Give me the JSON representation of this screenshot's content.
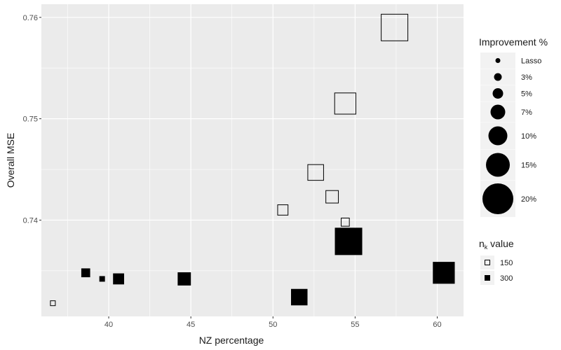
{
  "chart_data": {
    "type": "scatter",
    "xlabel": "NZ percentage",
    "ylabel": "Overall MSE",
    "xlim": [
      35.9,
      61.6
    ],
    "ylim": [
      0.7305,
      0.7613
    ],
    "x_ticks": [
      40,
      45,
      50,
      55,
      60
    ],
    "y_ticks": [
      0.74,
      0.75,
      0.76
    ],
    "grid": true,
    "legend_placement": "right",
    "size_legend": {
      "title": "Improvement %",
      "entries": [
        {
          "label": "Lasso",
          "improvement": 0
        },
        {
          "label": "3%",
          "improvement": 3
        },
        {
          "label": "5%",
          "improvement": 5
        },
        {
          "label": "7%",
          "improvement": 7
        },
        {
          "label": "10%",
          "improvement": 10
        },
        {
          "label": "15%",
          "improvement": 15
        },
        {
          "label": "20%",
          "improvement": 20
        }
      ]
    },
    "shape_legend": {
      "title_main": "n",
      "title_sub": "k",
      "title_rest": " value",
      "entries": [
        {
          "label": "150",
          "fill": "open"
        },
        {
          "label": "300",
          "fill": "filled"
        }
      ]
    },
    "points": [
      {
        "x": 36.6,
        "y": 0.7318,
        "nk": 150,
        "improvement": 0
      },
      {
        "x": 50.6,
        "y": 0.741,
        "nk": 150,
        "improvement": 5
      },
      {
        "x": 52.6,
        "y": 0.7447,
        "nk": 150,
        "improvement": 10
      },
      {
        "x": 53.6,
        "y": 0.7423,
        "nk": 150,
        "improvement": 7
      },
      {
        "x": 54.4,
        "y": 0.7398,
        "nk": 150,
        "improvement": 3
      },
      {
        "x": 54.4,
        "y": 0.7515,
        "nk": 150,
        "improvement": 15
      },
      {
        "x": 57.4,
        "y": 0.759,
        "nk": 150,
        "improvement": 20
      },
      {
        "x": 38.6,
        "y": 0.7348,
        "nk": 300,
        "improvement": 3
      },
      {
        "x": 39.6,
        "y": 0.7342,
        "nk": 300,
        "improvement": 0
      },
      {
        "x": 40.6,
        "y": 0.7342,
        "nk": 300,
        "improvement": 5
      },
      {
        "x": 44.6,
        "y": 0.7342,
        "nk": 300,
        "improvement": 7
      },
      {
        "x": 51.6,
        "y": 0.7324,
        "nk": 300,
        "improvement": 10
      },
      {
        "x": 54.6,
        "y": 0.7379,
        "nk": 300,
        "improvement": 20
      },
      {
        "x": 60.4,
        "y": 0.7348,
        "nk": 300,
        "improvement": 15
      }
    ]
  }
}
